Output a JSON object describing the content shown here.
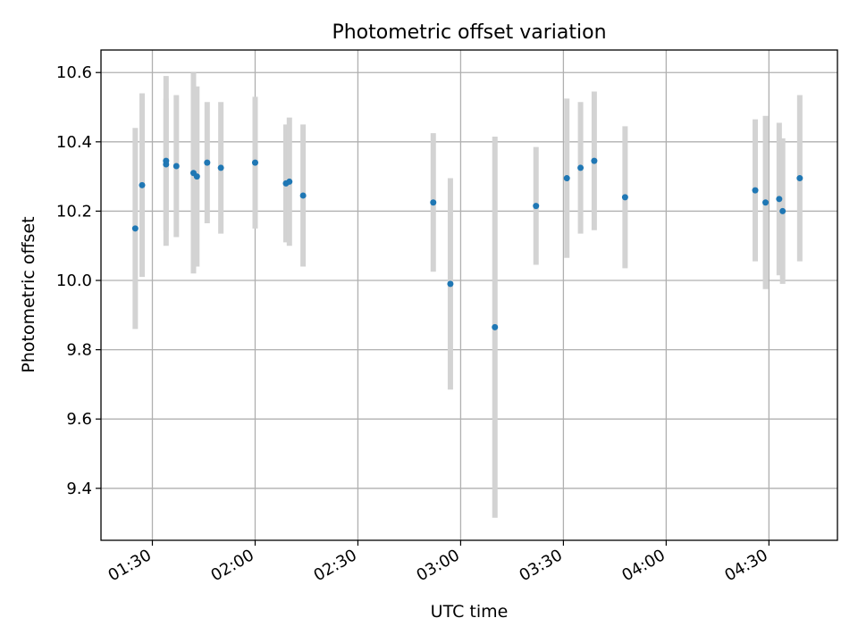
{
  "chart_data": {
    "type": "scatter",
    "title": "Photometric offset variation",
    "xlabel": "UTC time",
    "ylabel": "Photometric offset",
    "xlim": [
      "01:15",
      "04:50"
    ],
    "ylim": [
      9.25,
      10.665
    ],
    "x_ticks": [
      "01:30",
      "02:00",
      "02:30",
      "03:00",
      "03:30",
      "04:00",
      "04:30"
    ],
    "y_ticks": [
      "9.4",
      "9.6",
      "9.8",
      "10.0",
      "10.2",
      "10.4",
      "10.6"
    ],
    "grid": true,
    "colors": {
      "point": "#1f77b4",
      "errorbar": "#d3d3d3",
      "grid": "#b0b0b0"
    },
    "series": [
      {
        "points": [
          {
            "x": "01:25",
            "y": 10.15,
            "yerr": 0.29
          },
          {
            "x": "01:27",
            "y": 10.275,
            "yerr": 0.265
          },
          {
            "x": "01:34",
            "y": 10.335,
            "yerr": 0.19
          },
          {
            "x": "01:34",
            "y": 10.345,
            "yerr": 0.245
          },
          {
            "x": "01:37",
            "y": 10.33,
            "yerr": 0.205
          },
          {
            "x": "01:42",
            "y": 10.31,
            "yerr": 0.29
          },
          {
            "x": "01:43",
            "y": 10.3,
            "yerr": 0.26
          },
          {
            "x": "01:46",
            "y": 10.34,
            "yerr": 0.175
          },
          {
            "x": "01:50",
            "y": 10.325,
            "yerr": 0.19
          },
          {
            "x": "02:00",
            "y": 10.34,
            "yerr": 0.19
          },
          {
            "x": "02:09",
            "y": 10.28,
            "yerr": 0.17
          },
          {
            "x": "02:10",
            "y": 10.285,
            "yerr": 0.185
          },
          {
            "x": "02:14",
            "y": 10.245,
            "yerr": 0.205
          },
          {
            "x": "02:52",
            "y": 10.225,
            "yerr": 0.2
          },
          {
            "x": "02:57",
            "y": 9.99,
            "yerr": 0.305
          },
          {
            "x": "03:10",
            "y": 9.865,
            "yerr": 0.55
          },
          {
            "x": "03:22",
            "y": 10.215,
            "yerr": 0.17
          },
          {
            "x": "03:31",
            "y": 10.295,
            "yerr": 0.23
          },
          {
            "x": "03:35",
            "y": 10.325,
            "yerr": 0.19
          },
          {
            "x": "03:39",
            "y": 10.345,
            "yerr": 0.2
          },
          {
            "x": "03:48",
            "y": 10.24,
            "yerr": 0.205
          },
          {
            "x": "04:26",
            "y": 10.26,
            "yerr": 0.205
          },
          {
            "x": "04:29",
            "y": 10.225,
            "yerr": 0.25
          },
          {
            "x": "04:33",
            "y": 10.235,
            "yerr": 0.22
          },
          {
            "x": "04:34",
            "y": 10.2,
            "yerr": 0.21
          },
          {
            "x": "04:39",
            "y": 10.295,
            "yerr": 0.24
          }
        ]
      }
    ]
  }
}
